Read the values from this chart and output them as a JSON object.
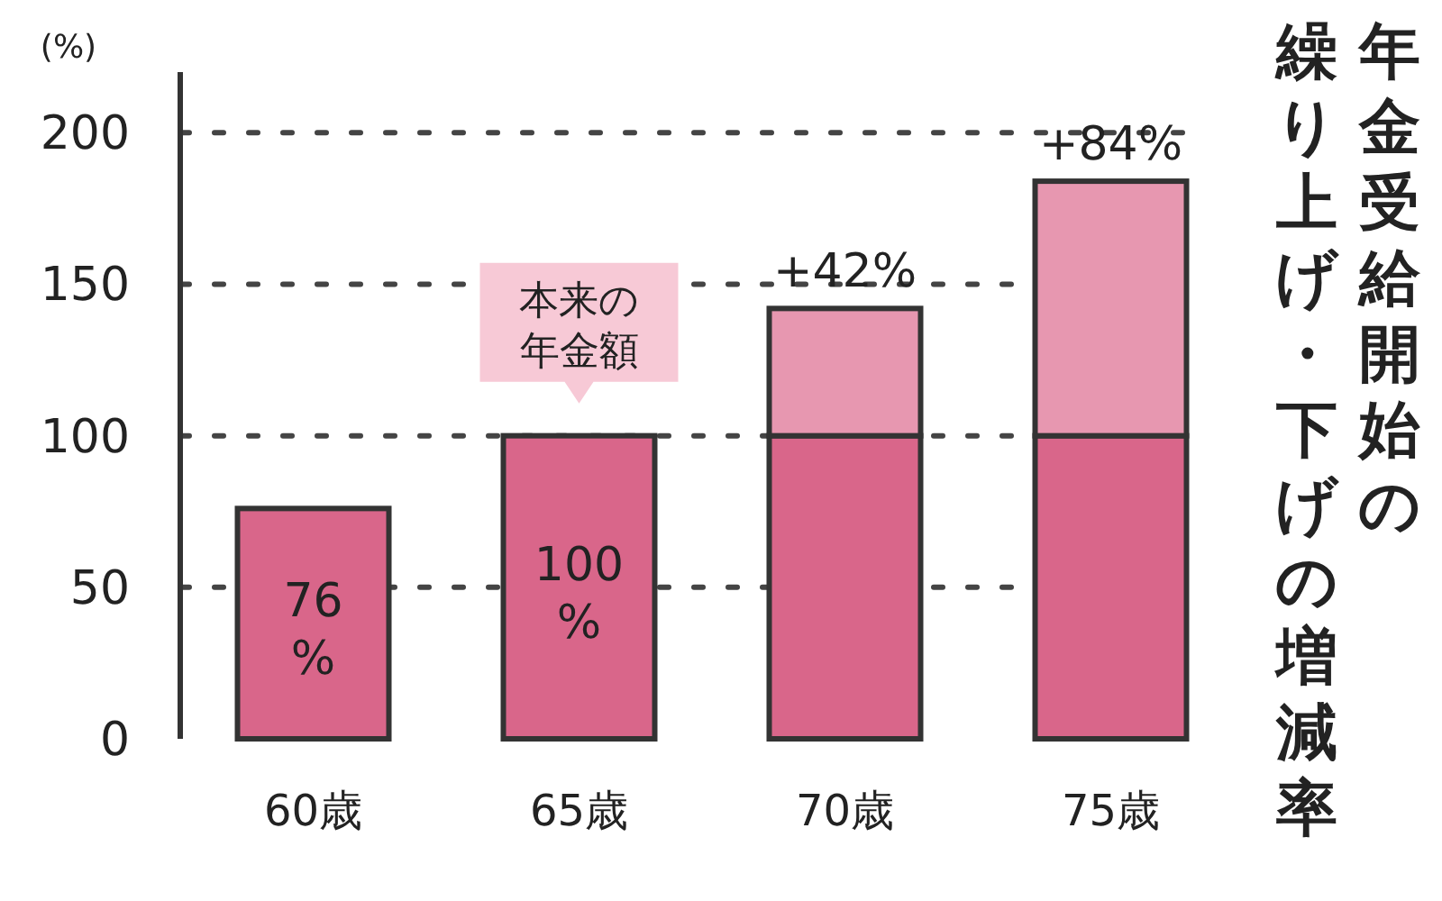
{
  "chart_data": {
    "type": "bar",
    "title": "年金受給開始の繰り上げ・下げの増減率",
    "ylabel": "(%)",
    "categories": [
      "60歳",
      "65歳",
      "70歳",
      "75歳"
    ],
    "stacked": true,
    "ylim": [
      0,
      220
    ],
    "yticks": [
      0,
      50,
      100,
      150,
      200
    ],
    "grid": "y",
    "series": [
      {
        "color": "#d9668a",
        "values": [
          76,
          100,
          100,
          100
        ],
        "value_labels": [
          "76%",
          "100%",
          null,
          null
        ]
      },
      {
        "color": "#e797b0",
        "values": [
          null,
          null,
          42,
          84
        ],
        "value_labels": [
          null,
          null,
          "+42%",
          "+84%"
        ]
      }
    ],
    "annotations": [
      {
        "text": "本来の年金額",
        "x": "65歳",
        "y": 100
      }
    ]
  }
}
